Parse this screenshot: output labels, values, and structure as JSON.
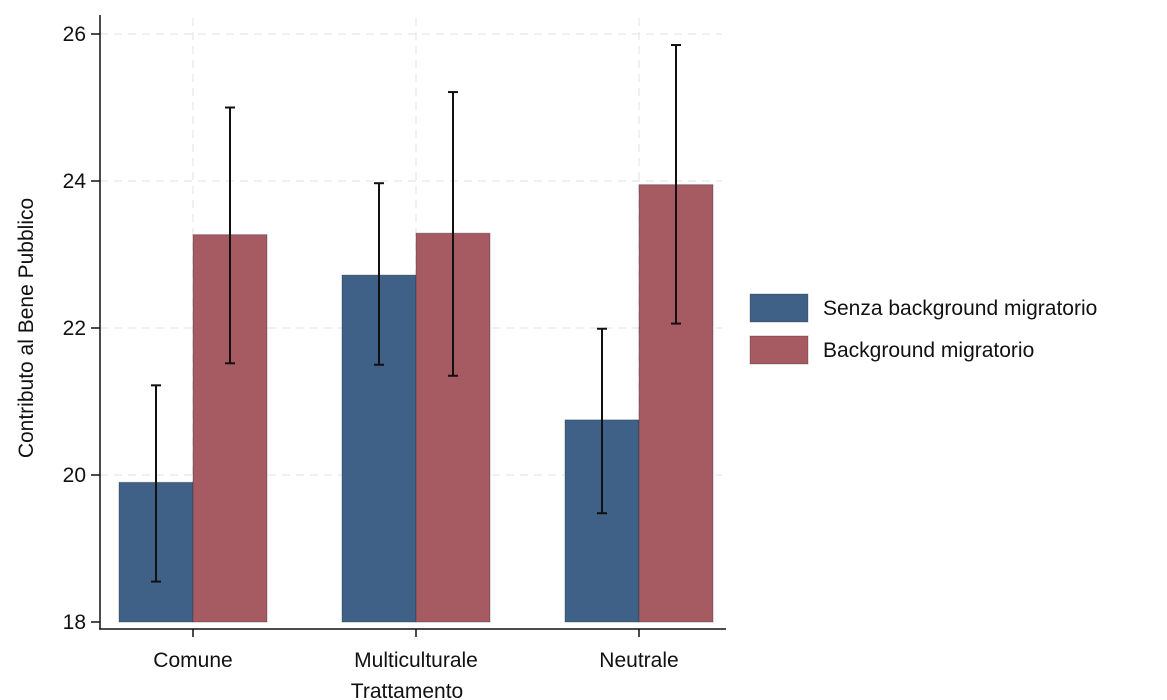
{
  "chart_data": {
    "type": "bar",
    "title": "",
    "xlabel": "Trattamento",
    "ylabel": "Contributo al Bene Pubblico",
    "categories": [
      "Comune",
      "Multiculturale",
      "Neutrale"
    ],
    "ylim": [
      18,
      26
    ],
    "yticks": [
      18,
      20,
      22,
      24,
      26
    ],
    "grid": true,
    "legend_position": "right",
    "series": [
      {
        "name": "Senza background migratorio",
        "color": "#3f6188",
        "values": [
          19.9,
          22.72,
          20.75
        ],
        "error_low": [
          18.55,
          21.5,
          19.48
        ],
        "error_high": [
          21.22,
          23.97,
          21.99
        ]
      },
      {
        "name": "Background migratorio",
        "color": "#a65a62",
        "values": [
          23.27,
          23.29,
          23.95
        ],
        "error_low": [
          21.52,
          21.35,
          22.06
        ],
        "error_high": [
          25.0,
          25.21,
          25.85
        ]
      }
    ]
  }
}
